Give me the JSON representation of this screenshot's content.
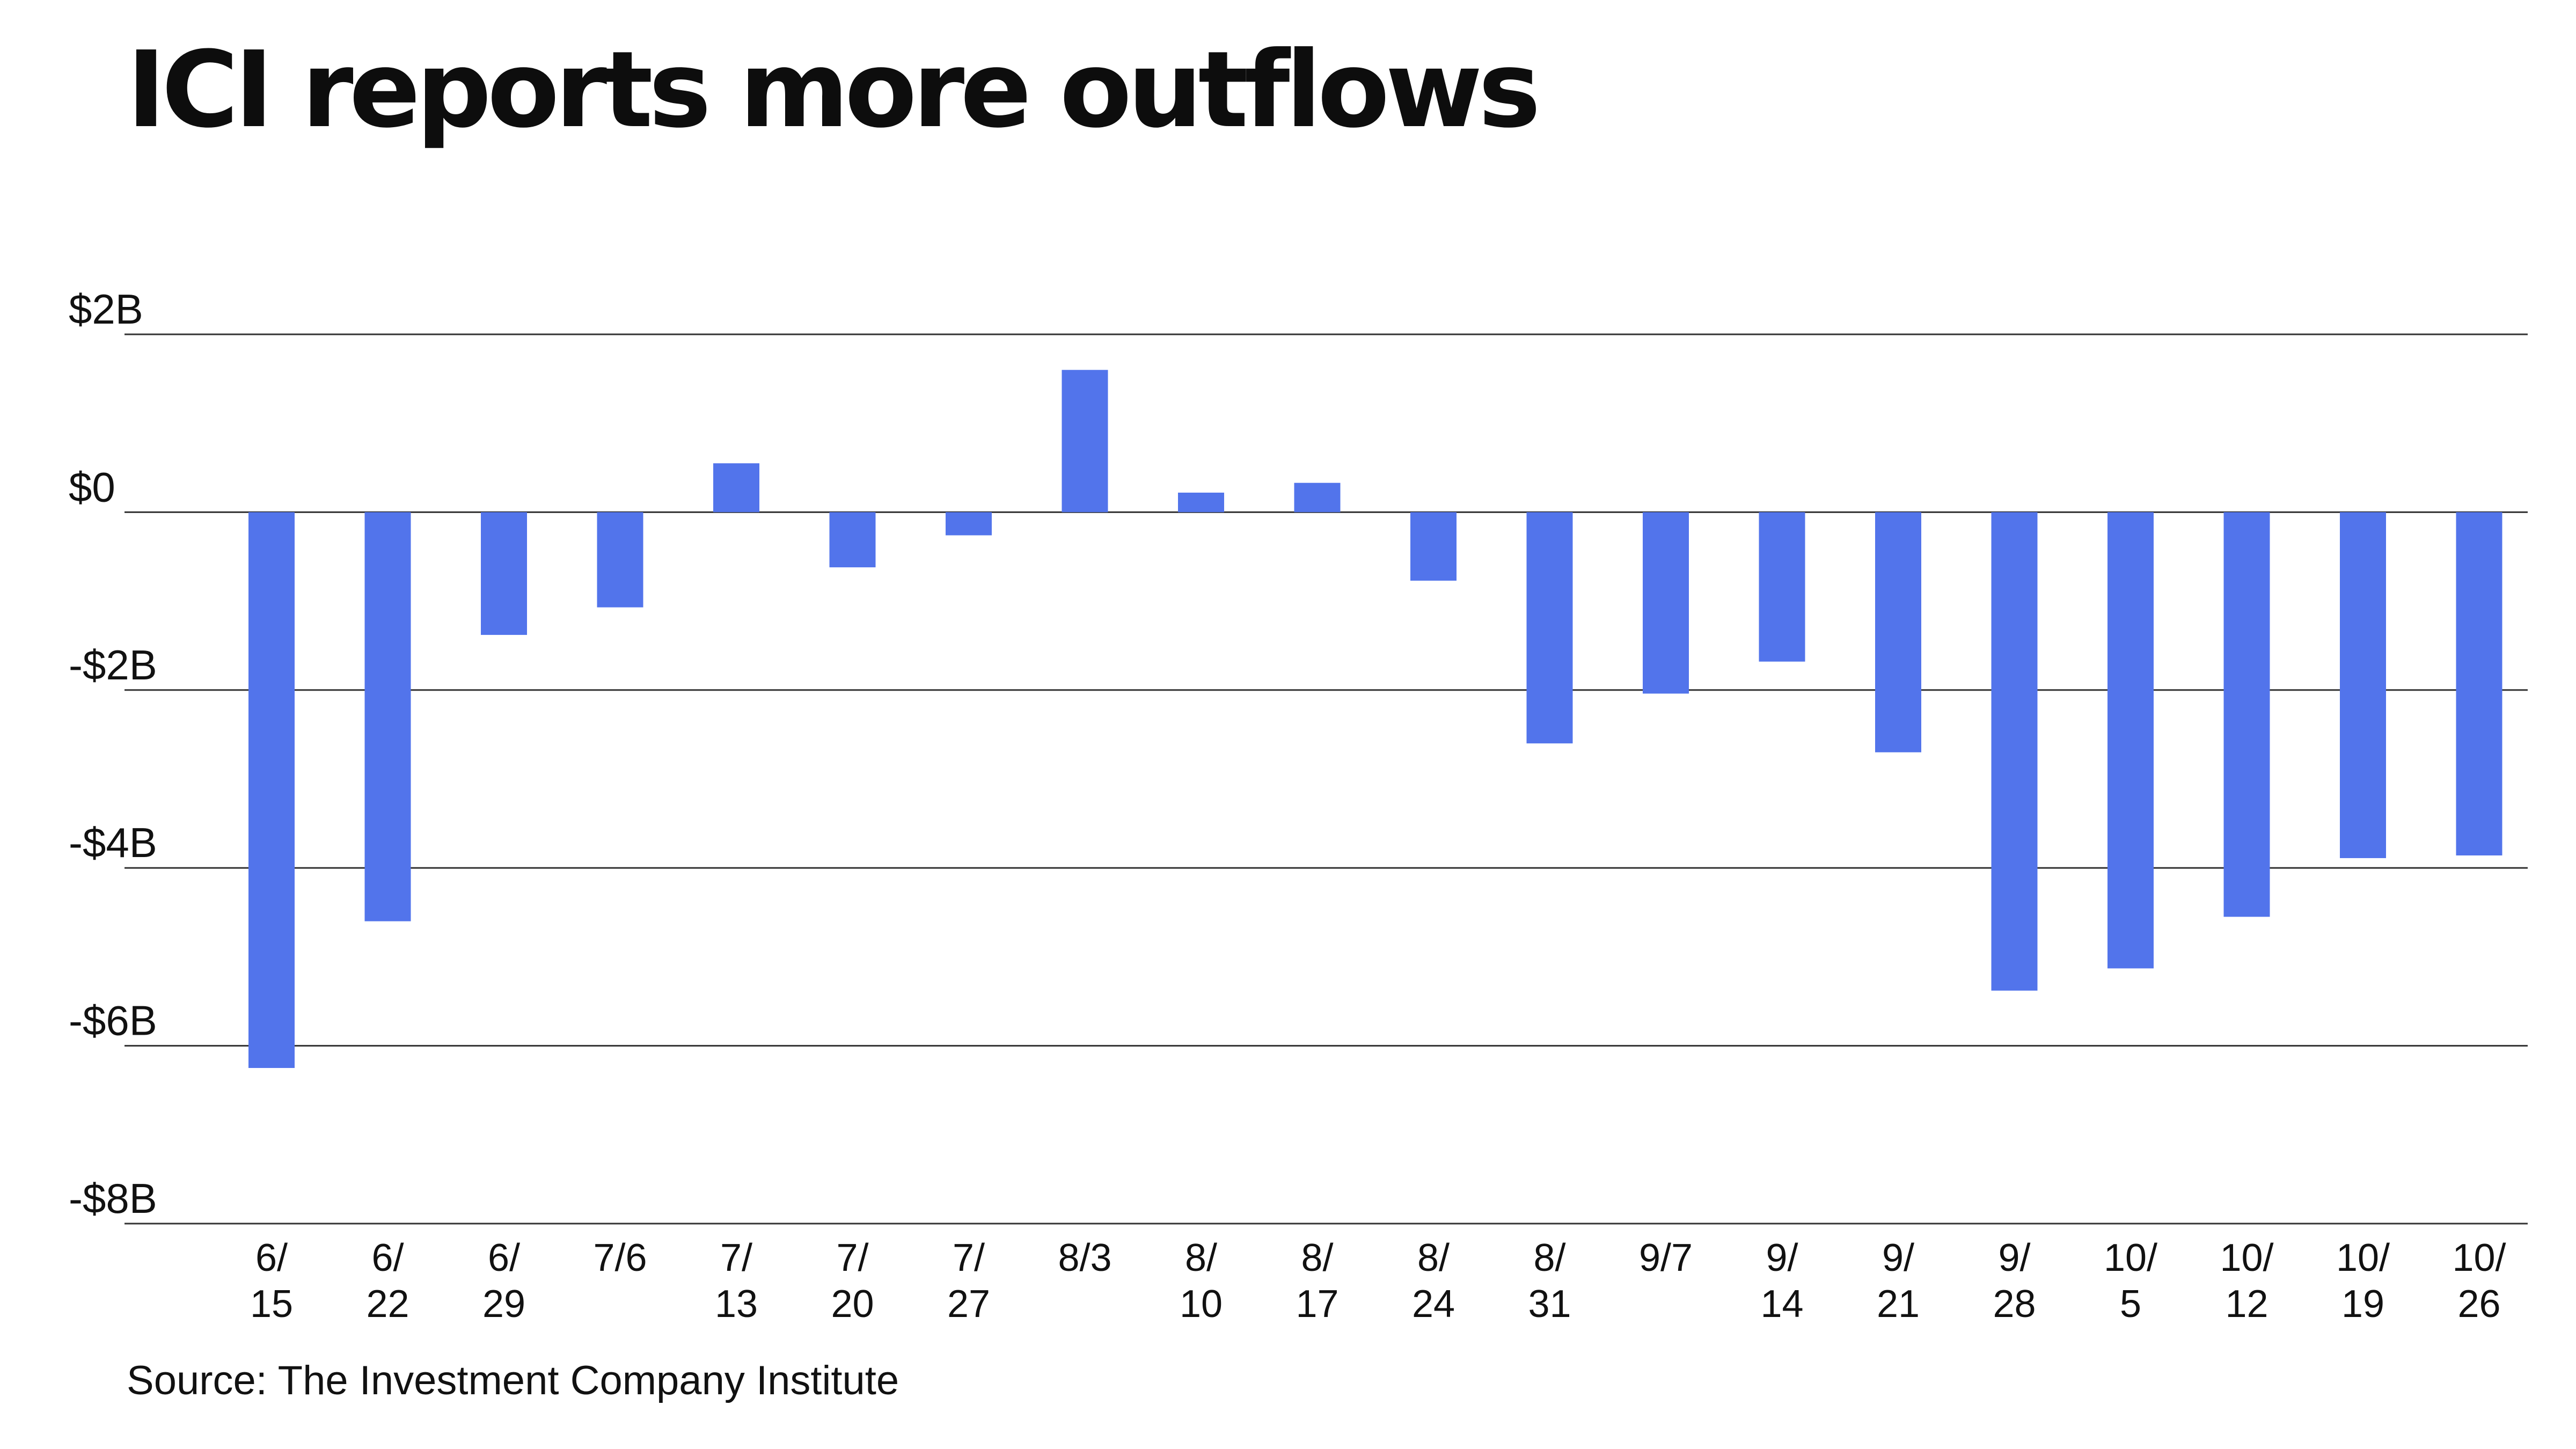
{
  "chart_data": {
    "type": "bar",
    "title": "ICI reports more outflows",
    "source": "Source: The Investment Company Institute",
    "categories": [
      [
        "6/",
        "15"
      ],
      [
        "6/",
        "22"
      ],
      [
        "6/",
        "29"
      ],
      [
        "7/6"
      ],
      [
        "7/",
        "13"
      ],
      [
        "7/",
        "20"
      ],
      [
        "7/",
        "27"
      ],
      [
        "8/3"
      ],
      [
        "8/",
        "10"
      ],
      [
        "8/",
        "17"
      ],
      [
        "8/",
        "24"
      ],
      [
        "8/",
        "31"
      ],
      [
        "9/7"
      ],
      [
        "9/",
        "14"
      ],
      [
        "9/",
        "21"
      ],
      [
        "9/",
        "28"
      ],
      [
        "10/",
        "5"
      ],
      [
        "10/",
        "12"
      ],
      [
        "10/",
        "19"
      ],
      [
        "10/",
        "26"
      ]
    ],
    "values": [
      -6.25,
      -4.6,
      -1.38,
      -1.07,
      0.55,
      -0.62,
      -0.26,
      1.6,
      0.22,
      0.33,
      -0.77,
      -2.6,
      -2.04,
      -1.68,
      -2.7,
      -5.38,
      -5.13,
      -4.55,
      -3.89,
      -3.86
    ],
    "yticks": [
      {
        "value": 2,
        "label": "$2B"
      },
      {
        "value": 0,
        "label": "$0"
      },
      {
        "value": -2,
        "label": "-$2B"
      },
      {
        "value": -4,
        "label": "-$4B"
      },
      {
        "value": -6,
        "label": "-$6B"
      },
      {
        "value": -8,
        "label": "-$8B"
      }
    ],
    "ylim": [
      -8,
      2
    ],
    "grid": true,
    "xlabel": "",
    "ylabel": "",
    "colors": {
      "bar": "#5274EB",
      "grid": "#333333",
      "text": "#111111"
    }
  }
}
